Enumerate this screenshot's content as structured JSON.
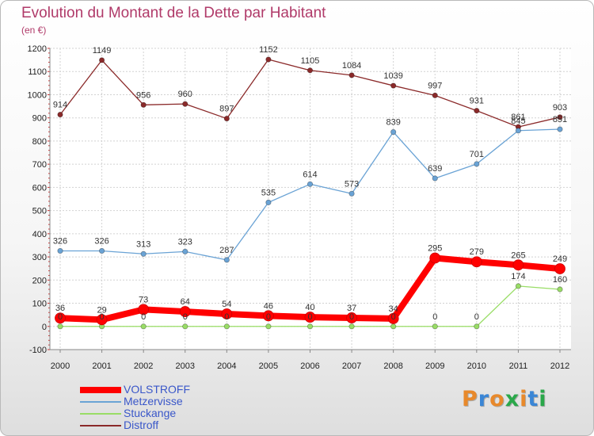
{
  "title": "Evolution du Montant de la Dette par Habitant",
  "subtitle": "(en €)",
  "logo": {
    "text": "Proxiti",
    "colors": [
      "#e8892b",
      "#3a86d6",
      "#e8892b",
      "#2aa84a",
      "#e8892b",
      "#3a86d6",
      "#2aa84a"
    ]
  },
  "chart_data": {
    "type": "line",
    "title": "Evolution du Montant de la Dette par Habitant",
    "subtitle": "(en €)",
    "x": [
      "2000",
      "2001",
      "2002",
      "2003",
      "2004",
      "2005",
      "2006",
      "2007",
      "2008",
      "2009",
      "2010",
      "2011",
      "2012"
    ],
    "ylim": [
      -100,
      1200
    ],
    "yticks": [
      -100,
      0,
      100,
      200,
      300,
      400,
      500,
      600,
      700,
      800,
      900,
      1000,
      1100,
      1200
    ],
    "grid": true,
    "legend_position": "bottom-left",
    "series": [
      {
        "name": "VOLSTROFF",
        "color": "#ff0000",
        "emphasis": true,
        "values": [
          36,
          29,
          73,
          64,
          54,
          46,
          40,
          37,
          34,
          295,
          279,
          265,
          249
        ]
      },
      {
        "name": "Metzervisse",
        "color": "#6aa3d5",
        "values": [
          326,
          326,
          313,
          323,
          287,
          535,
          614,
          573,
          839,
          639,
          701,
          845,
          851
        ]
      },
      {
        "name": "Stuckange",
        "color": "#99dd66",
        "values": [
          0,
          0,
          0,
          0,
          0,
          0,
          0,
          0,
          0,
          0,
          0,
          174,
          160
        ]
      },
      {
        "name": "Distroff",
        "color": "#8b2a2a",
        "values": [
          914,
          1149,
          956,
          960,
          897,
          1152,
          1105,
          1084,
          1039,
          997,
          931,
          861,
          903
        ]
      }
    ]
  }
}
